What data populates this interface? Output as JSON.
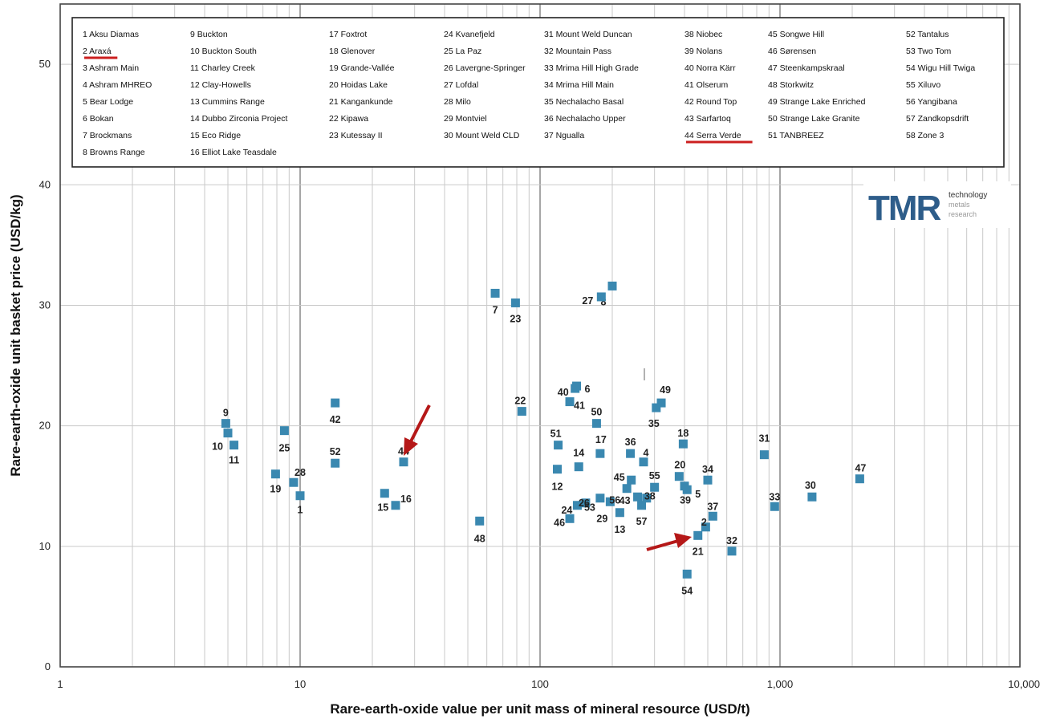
{
  "chart_data": {
    "type": "scatter",
    "xlabel": "Rare-earth-oxide value per unit mass of mineral resource (USD/t)",
    "ylabel": "Rare-earth-oxide unit basket price (USD/kg)",
    "xscale": "log",
    "xlim": [
      1,
      10000
    ],
    "ylim": [
      0,
      55
    ],
    "grid": true,
    "marker_color": "#3a88b0",
    "highlight_color": "#cc1f1f",
    "x_ticks": [
      {
        "value": 1,
        "label": "1"
      },
      {
        "value": 10,
        "label": "10"
      },
      {
        "value": 100,
        "label": "100"
      },
      {
        "value": 1000,
        "label": "1,000"
      },
      {
        "value": 10000,
        "label": "10,000"
      }
    ],
    "y_ticks": [
      {
        "value": 0,
        "label": "0"
      },
      {
        "value": 10,
        "label": "10"
      },
      {
        "value": 20,
        "label": "20"
      },
      {
        "value": 30,
        "label": "30"
      },
      {
        "value": 40,
        "label": "40"
      },
      {
        "value": 50,
        "label": "50"
      }
    ],
    "legend": {
      "placement": "top",
      "columns": [
        [
          "1 Aksu Diamas",
          "2 Araxá",
          "3 Ashram Main",
          "4 Ashram MHREO",
          "5 Bear Lodge",
          "6 Bokan",
          "7 Brockmans",
          "8 Browns Range"
        ],
        [
          "9 Buckton",
          "10 Buckton South",
          "11 Charley Creek",
          "12 Clay-Howells",
          "13 Cummins Range",
          "14 Dubbo Zirconia Project",
          "15 Eco Ridge",
          "16 Elliot Lake Teasdale"
        ],
        [
          "17 Foxtrot",
          "18 Glenover",
          "19 Grande-Vallée",
          "20 Hoidas Lake",
          "21 Kangankunde",
          "22 Kipawa",
          "23 Kutessay II"
        ],
        [
          "24 Kvanefjeld",
          "25 La Paz",
          "26 Lavergne-Springer",
          "27 Lofdal",
          "28 Milo",
          "29 Montviel",
          "30 Mount Weld CLD"
        ],
        [
          "31 Mount Weld Duncan",
          "32 Mountain Pass",
          "33 Mrima Hill High Grade",
          "34 Mrima Hill Main",
          "35 Nechalacho Basal",
          "36 Nechalacho Upper",
          "37 Ngualla"
        ],
        [
          "38 Niobec",
          "39 Nolans",
          "40 Norra Kärr",
          "41 Olserum",
          "42 Round Top",
          "43 Sarfartoq",
          "44 Serra Verde"
        ],
        [
          "45 Songwe Hill",
          "46 Sørensen",
          "47 Steenkampskraal",
          "48 Storkwitz",
          "49 Strange Lake Enriched",
          "50 Strange Lake Granite",
          "51 TANBREEZ"
        ],
        [
          "52 Tantalus",
          "53 Two Tom",
          "54 Wigu Hill Twiga",
          "55 Xiluvo",
          "56 Yangibana",
          "57 Zandkopsdrift",
          "58 Zone 3"
        ]
      ],
      "highlighted": [
        "2 Araxá",
        "44 Serra Verde"
      ]
    },
    "points": [
      {
        "label": "1",
        "x": 10.0,
        "y": 14.2
      },
      {
        "label": "2",
        "x": 490,
        "y": 11.6
      },
      {
        "label": "4",
        "x": 270,
        "y": 17.0
      },
      {
        "label": "5",
        "x": 410,
        "y": 14.7
      },
      {
        "label": "6",
        "x": 142,
        "y": 23.3
      },
      {
        "label": "7",
        "x": 65,
        "y": 31.0
      },
      {
        "label": "8",
        "x": 200,
        "y": 31.6
      },
      {
        "label": "9",
        "x": 4.9,
        "y": 20.2
      },
      {
        "label": "10",
        "x": 5.0,
        "y": 19.4
      },
      {
        "label": "11",
        "x": 5.3,
        "y": 18.4
      },
      {
        "label": "12",
        "x": 118,
        "y": 16.4
      },
      {
        "label": "13",
        "x": 215,
        "y": 12.8
      },
      {
        "label": "14",
        "x": 145,
        "y": 16.6
      },
      {
        "label": "15",
        "x": 22.5,
        "y": 14.4
      },
      {
        "label": "16",
        "x": 25.0,
        "y": 13.4
      },
      {
        "label": "17",
        "x": 178,
        "y": 17.7
      },
      {
        "label": "18",
        "x": 395,
        "y": 18.5
      },
      {
        "label": "19",
        "x": 7.9,
        "y": 16.0
      },
      {
        "label": "20",
        "x": 380,
        "y": 15.8
      },
      {
        "label": "21",
        "x": 455,
        "y": 10.9
      },
      {
        "label": "22",
        "x": 84,
        "y": 21.2
      },
      {
        "label": "23",
        "x": 79,
        "y": 30.2
      },
      {
        "label": "24",
        "x": 143,
        "y": 13.4
      },
      {
        "label": "25",
        "x": 8.6,
        "y": 19.6
      },
      {
        "label": "26",
        "x": 155,
        "y": 13.6
      },
      {
        "label": "27",
        "x": 180,
        "y": 30.7
      },
      {
        "label": "28",
        "x": 9.4,
        "y": 15.3
      },
      {
        "label": "29",
        "x": 196,
        "y": 13.7
      },
      {
        "label": "30",
        "x": 1360,
        "y": 14.1
      },
      {
        "label": "31",
        "x": 860,
        "y": 17.6
      },
      {
        "label": "32",
        "x": 630,
        "y": 9.6
      },
      {
        "label": "33",
        "x": 950,
        "y": 13.3
      },
      {
        "label": "34",
        "x": 500,
        "y": 15.5
      },
      {
        "label": "35",
        "x": 305,
        "y": 21.5
      },
      {
        "label": "36",
        "x": 238,
        "y": 17.7
      },
      {
        "label": "37",
        "x": 525,
        "y": 12.5
      },
      {
        "label": "38",
        "x": 278,
        "y": 14.0
      },
      {
        "label": "39",
        "x": 400,
        "y": 15.0
      },
      {
        "label": "40",
        "x": 140,
        "y": 23.1
      },
      {
        "label": "41",
        "x": 133,
        "y": 22.0
      },
      {
        "label": "42",
        "x": 14.0,
        "y": 21.9
      },
      {
        "label": "43",
        "x": 255,
        "y": 14.1
      },
      {
        "label": "44",
        "x": 27.0,
        "y": 17.0
      },
      {
        "label": "45",
        "x": 240,
        "y": 15.5
      },
      {
        "label": "46",
        "x": 133,
        "y": 12.3
      },
      {
        "label": "47",
        "x": 2150,
        "y": 15.6
      },
      {
        "label": "48",
        "x": 56,
        "y": 12.1
      },
      {
        "label": "49",
        "x": 320,
        "y": 21.9
      },
      {
        "label": "50",
        "x": 172,
        "y": 20.2
      },
      {
        "label": "51",
        "x": 119,
        "y": 18.4
      },
      {
        "label": "52",
        "x": 14.0,
        "y": 16.9
      },
      {
        "label": "53",
        "x": 178,
        "y": 14.0
      },
      {
        "label": "54",
        "x": 410,
        "y": 7.7
      },
      {
        "label": "55",
        "x": 300,
        "y": 14.9
      },
      {
        "label": "56",
        "x": 230,
        "y": 14.8
      },
      {
        "label": "57",
        "x": 265,
        "y": 13.4
      }
    ]
  },
  "logo": {
    "main": "TMR",
    "line1": "technology",
    "line2": "metals",
    "line3": "research"
  }
}
